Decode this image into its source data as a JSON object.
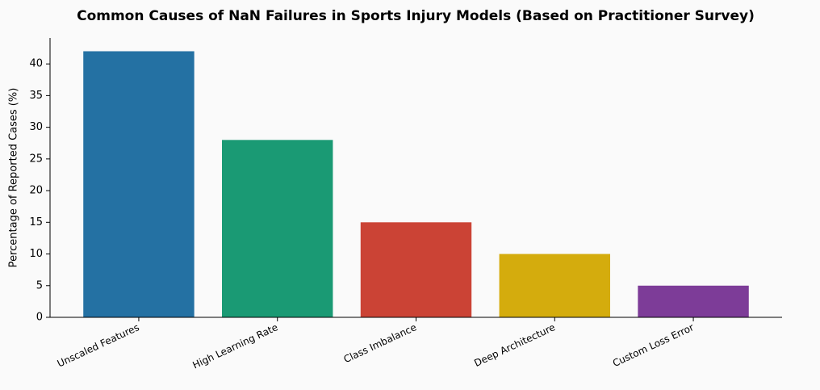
{
  "chart_data": {
    "type": "bar",
    "title": "Common Causes of NaN Failures in Sports Injury Models (Based on Practitioner Survey)",
    "y_label": "Percentage of Reported Cases (%)",
    "categories": [
      "Unscaled Features",
      "High Learning Rate",
      "Class Imbalance",
      "Deep Architecture",
      "Custom Loss Error"
    ],
    "values": [
      42,
      28,
      15,
      10,
      5
    ],
    "colors": [
      "#2471a3",
      "#1a9a74",
      "#cb4335",
      "#d4ac0d",
      "#7d3c98"
    ],
    "ylim": [
      0,
      44.1
    ],
    "yticks": [
      0,
      5,
      10,
      15,
      20,
      25,
      30,
      35,
      40
    ],
    "grid": false
  }
}
